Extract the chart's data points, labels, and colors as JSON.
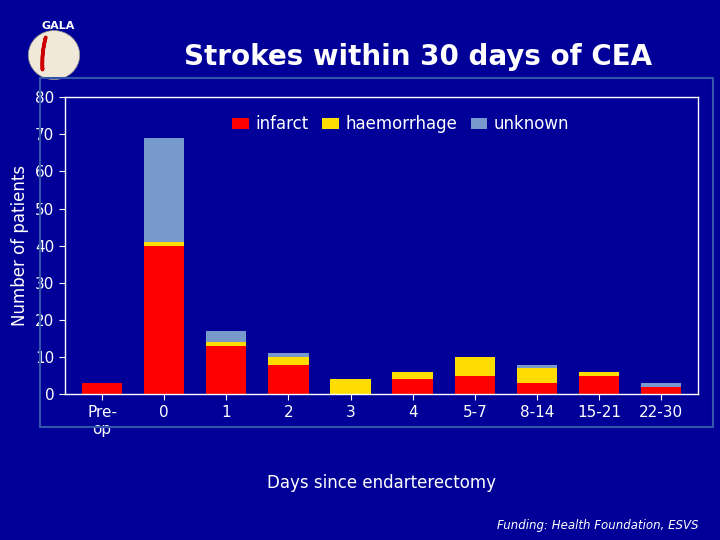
{
  "title": "Strokes within 30 days of CEA",
  "ylabel": "Number of patients",
  "xlabel": "Days since endarterectomy",
  "categories": [
    "Pre-\nop",
    "0",
    "1",
    "2",
    "3",
    "4",
    "5-7",
    "8-14",
    "15-21",
    "22-30"
  ],
  "infarct": [
    3,
    40,
    13,
    8,
    0,
    4,
    5,
    3,
    5,
    2
  ],
  "haemorrhage": [
    0,
    1,
    1,
    2,
    4,
    2,
    5,
    4,
    1,
    0
  ],
  "unknown": [
    0,
    28,
    3,
    1,
    0,
    0,
    0,
    1,
    0,
    1
  ],
  "infarct_color": "#ff0000",
  "haemorrhage_color": "#ffdd00",
  "unknown_color": "#7799cc",
  "bg_color": "#000099",
  "axis_bg": "#000099",
  "text_color": "#ffffff",
  "ylim": [
    0,
    80
  ],
  "yticks": [
    0,
    10,
    20,
    30,
    40,
    50,
    60,
    70,
    80
  ],
  "title_fontsize": 20,
  "label_fontsize": 12,
  "tick_fontsize": 11,
  "legend_fontsize": 12,
  "funding_text": "Funding: Health Foundation, ESVS",
  "chart_border_color": "#3355aa"
}
